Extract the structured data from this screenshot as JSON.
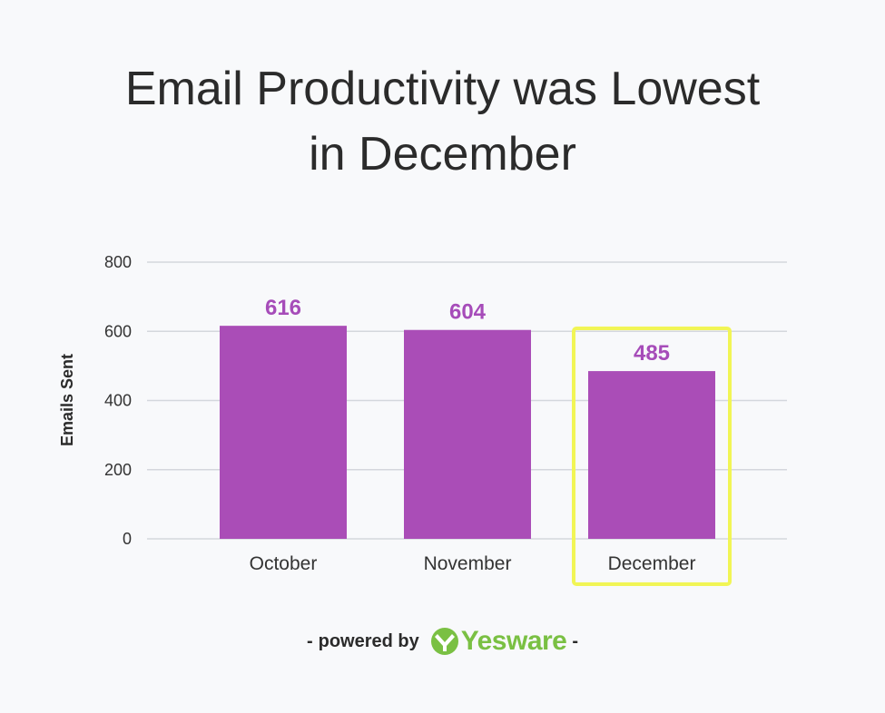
{
  "chart_data": {
    "type": "bar",
    "title_lines": [
      "Email Productivity was Lowest",
      "in December"
    ],
    "categories": [
      "October",
      "November",
      "December"
    ],
    "values": [
      616,
      604,
      485
    ],
    "ylabel": "Emails Sent",
    "xlabel": "",
    "ylim": [
      0,
      800
    ],
    "yticks": [
      0,
      200,
      400,
      600,
      800
    ],
    "grid": true,
    "highlight": "December",
    "bar_color": "#aa4db7",
    "label_color": "#a64cb9",
    "highlight_color": "#f1f555"
  },
  "footer": {
    "dash_left": "-",
    "powered_by": "powered by",
    "brand": "Yesware",
    "dash_right": "-",
    "brand_color": "#7ac043"
  }
}
